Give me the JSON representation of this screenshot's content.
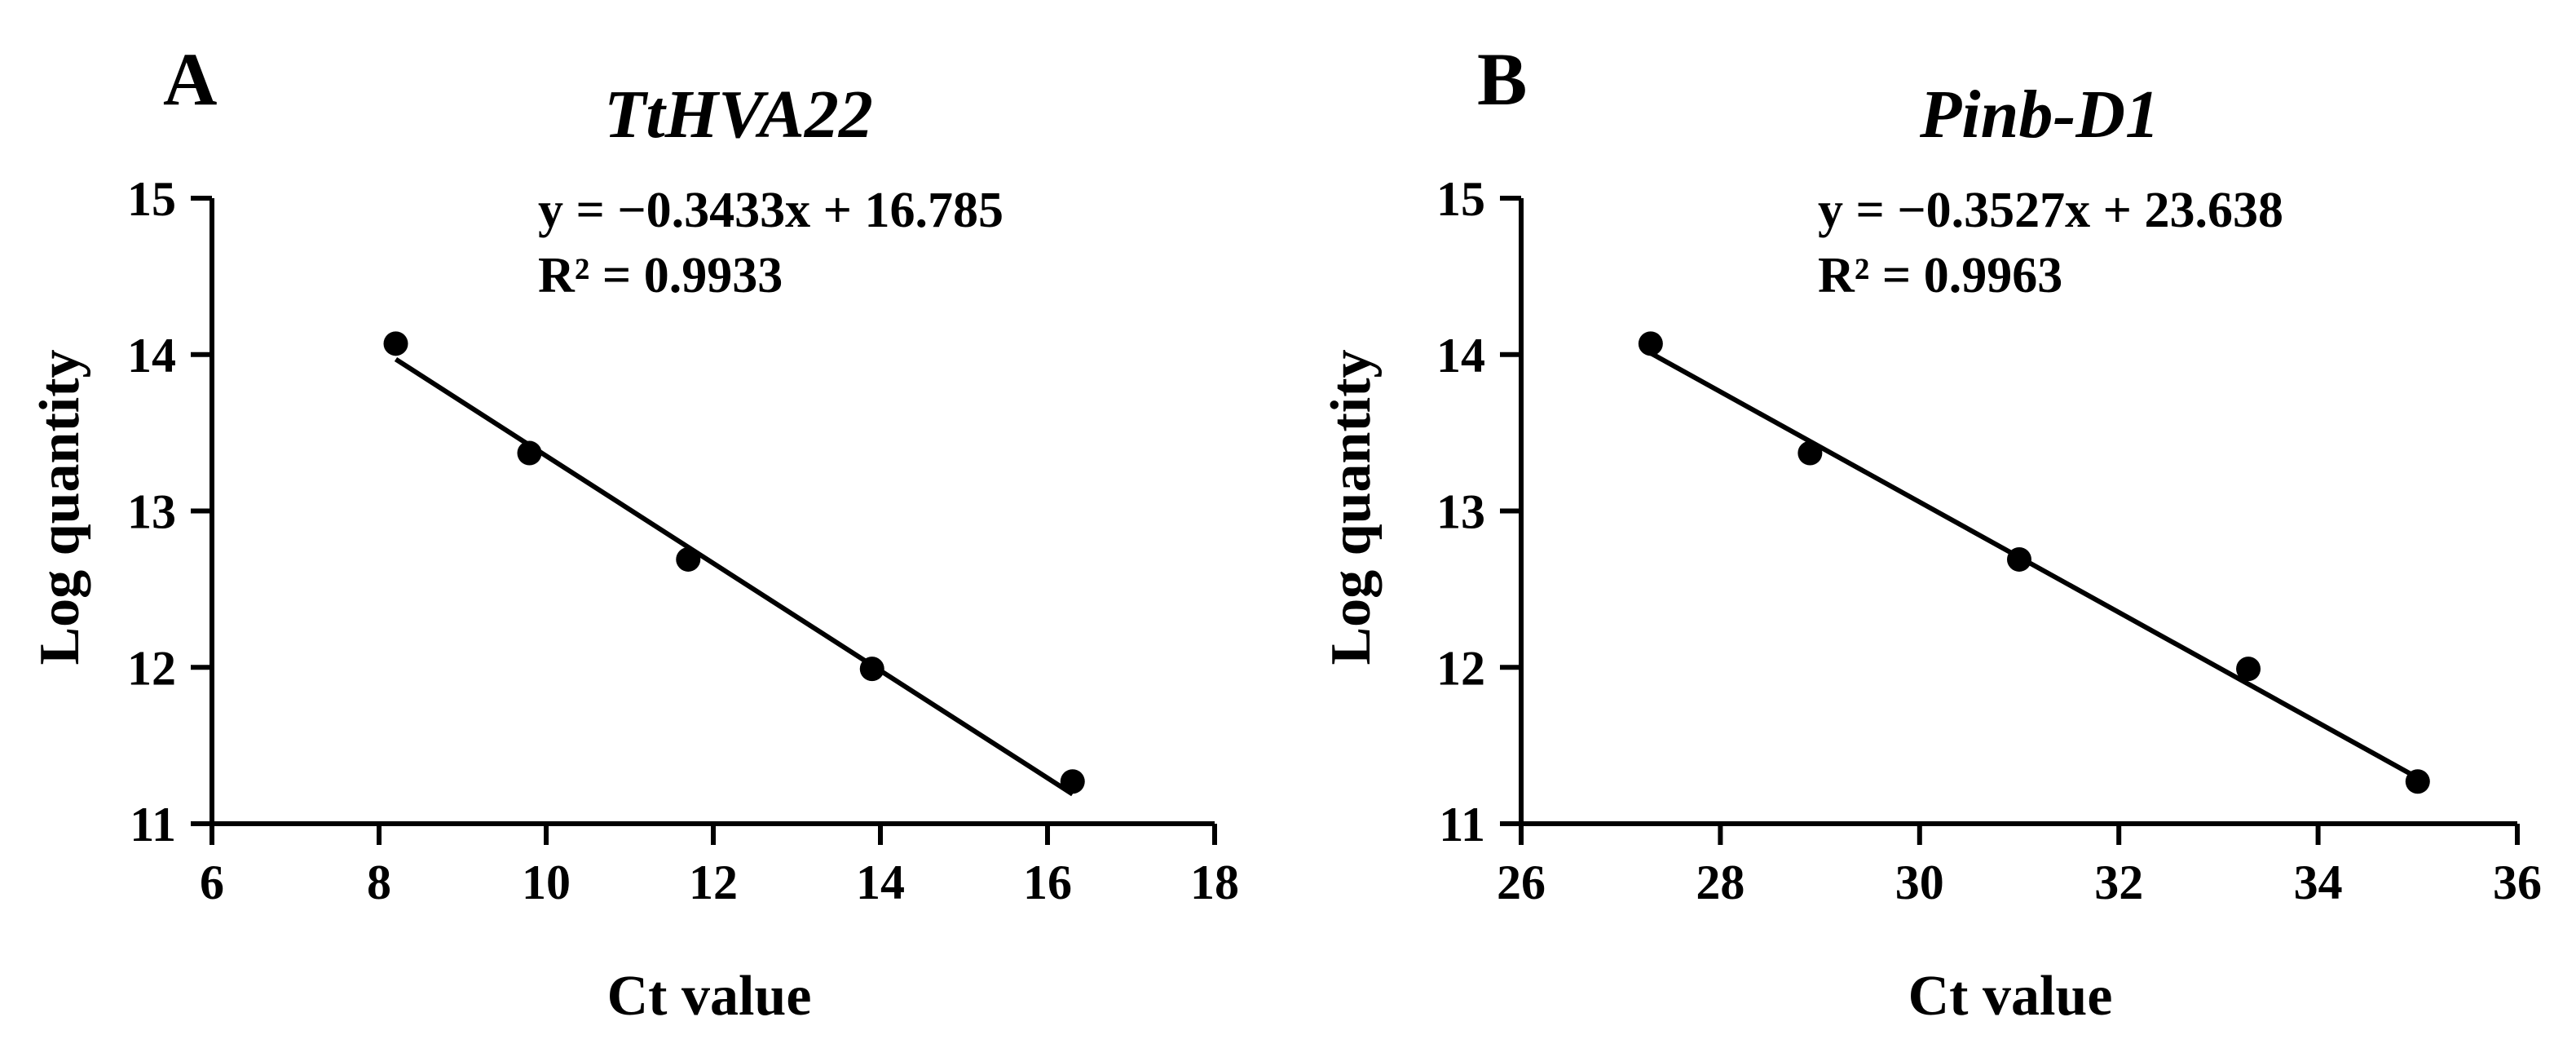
{
  "chart_data": [
    {
      "panel": "A",
      "type": "scatter",
      "title": "TtHVA22",
      "equation": "y = −0.3433x + 16.785",
      "r_squared": "R² = 0.9933",
      "xlabel": "Ct value",
      "ylabel": "Log quantity",
      "xlim": [
        6,
        18
      ],
      "ylim": [
        11,
        15
      ],
      "xticks": [
        6,
        8,
        10,
        12,
        14,
        16,
        18
      ],
      "yticks": [
        11,
        12,
        13,
        14,
        15
      ],
      "x": [
        8.2,
        9.8,
        11.7,
        13.9,
        16.3
      ],
      "y": [
        14.07,
        13.37,
        12.69,
        11.99,
        11.27
      ],
      "fit": {
        "slope": -0.3433,
        "intercept": 16.785,
        "x_range": [
          8.2,
          16.3
        ]
      },
      "grid": false
    },
    {
      "panel": "B",
      "type": "scatter",
      "title": "Pinb-D1",
      "equation": "y = −0.3527x + 23.638",
      "r_squared": "R² = 0.9963",
      "xlabel": "Ct value",
      "ylabel": "Log quantity",
      "xlim": [
        26,
        36
      ],
      "ylim": [
        11,
        15
      ],
      "xticks": [
        26,
        28,
        30,
        32,
        34,
        36
      ],
      "yticks": [
        11,
        12,
        13,
        14,
        15
      ],
      "x": [
        27.3,
        28.9,
        31.0,
        33.3,
        35.0
      ],
      "y": [
        14.07,
        13.37,
        12.69,
        11.99,
        11.27
      ],
      "fit": {
        "slope": -0.3527,
        "intercept": 23.638,
        "x_range": [
          27.3,
          35.0
        ]
      },
      "grid": false
    }
  ]
}
